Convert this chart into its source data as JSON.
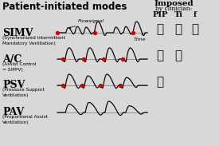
{
  "title": "Patient-initiated modes",
  "imposed_title": "Imposed",
  "imposed_sub": "by clinician:",
  "col_headers": [
    "PIP",
    "Ti",
    "f"
  ],
  "modes": [
    {
      "name": "SIMV",
      "subtext": "(Synchronized Intermittent\nMandatory Ventilation)",
      "checkmarks": [
        true,
        true,
        true
      ],
      "label_flow": "Flowsignal",
      "label_time": "Time"
    },
    {
      "name": "A/C",
      "subtext": "(Assist Control\n= SIPPV)",
      "checkmarks": [
        true,
        true,
        false
      ]
    },
    {
      "name": "PSV",
      "subtext": "(Pressure Support\nVentilation)",
      "checkmarks": [
        true,
        false,
        false
      ]
    },
    {
      "name": "PAV",
      "subtext": "(Proportional Assist\nVentilation)",
      "checkmarks": [
        false,
        false,
        false
      ]
    }
  ],
  "bg_color": "#d8d8d8",
  "waveform_color": "#000000",
  "baseline_color": "#888888",
  "red_color": "#cc0000",
  "check_color": "#111111",
  "title_color": "#000000"
}
